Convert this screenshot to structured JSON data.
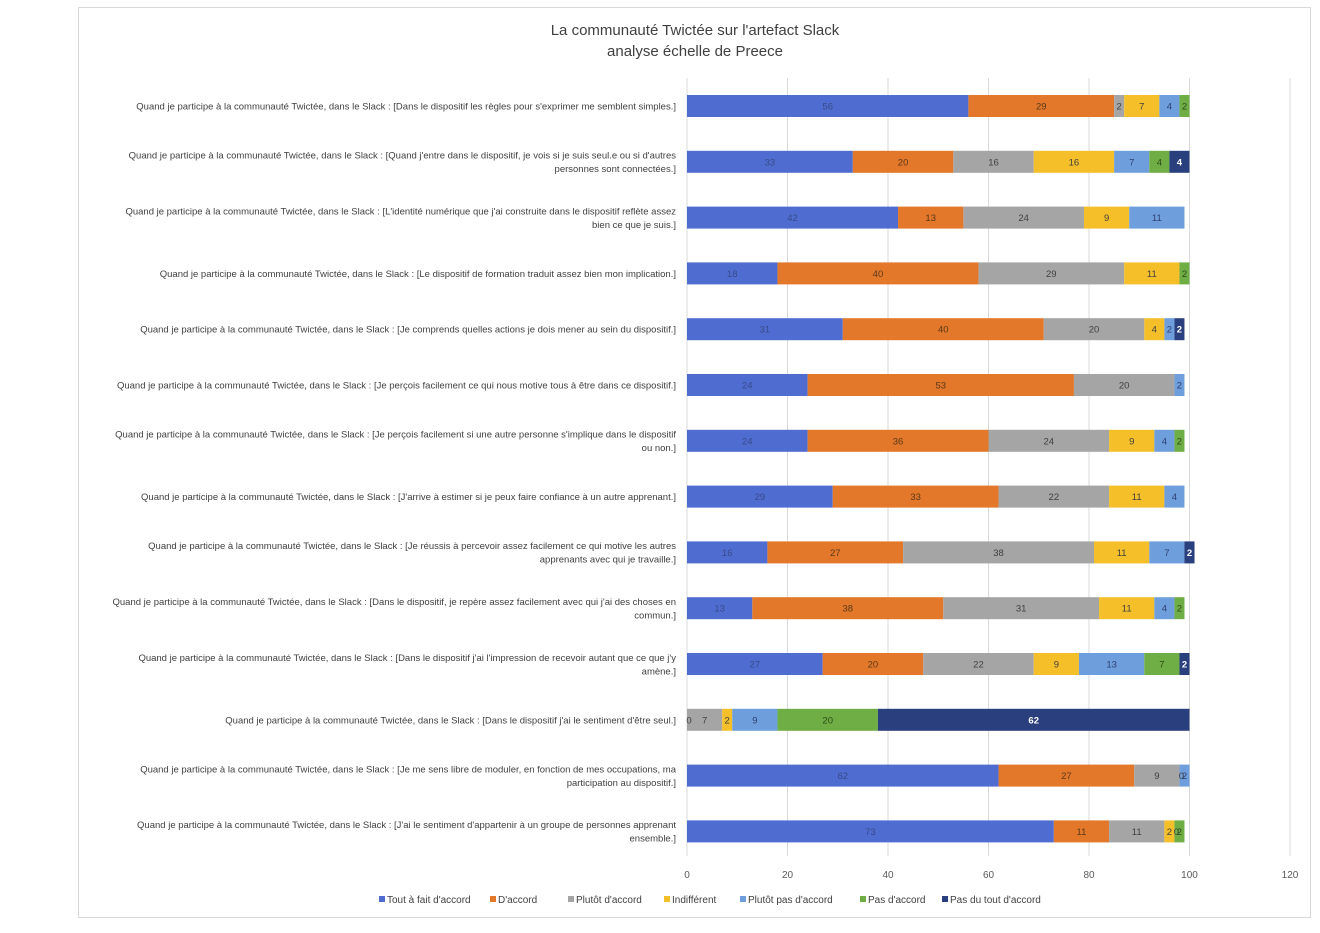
{
  "chart_data": {
    "type": "bar",
    "orientation": "horizontal-stacked",
    "title": "La communauté Twictée sur l'artefact Slack",
    "subtitle": "analyse échelle de Preece",
    "xlim": [
      0,
      120
    ],
    "xticks": [
      "0",
      "20",
      "40",
      "60",
      "80",
      "100",
      "120"
    ],
    "grid": true,
    "legend_position": "bottom",
    "categories": [
      [
        "Quand je participe à la communauté Twictée, dans le Slack : [Dans le dispositif les règles pour s'exprimer me semblent simples.]"
      ],
      [
        "Quand je participe à la communauté Twictée, dans le Slack : [Quand j'entre dans le dispositif, je vois si je suis seul.e ou si d'autres",
        "personnes sont connectées.]"
      ],
      [
        "Quand je participe à la communauté Twictée, dans le Slack : [L'identité numérique que j'ai construite dans le dispositif reflète assez",
        "bien ce que je suis.]"
      ],
      [
        "Quand je participe à la communauté Twictée, dans le Slack : [Le dispositif de formation traduit assez bien mon implication.]"
      ],
      [
        "Quand je participe à la communauté Twictée, dans le Slack : [Je comprends quelles actions je dois mener au sein du dispositif.]"
      ],
      [
        "Quand je participe à la communauté Twictée, dans le Slack : [Je perçois facilement ce qui nous motive tous à être dans ce dispositif.]"
      ],
      [
        "Quand je participe à la communauté Twictée, dans le Slack : [Je perçois facilement si une autre personne s'implique dans le dispositif",
        "ou non.]"
      ],
      [
        "Quand je participe à la communauté Twictée, dans le Slack : [J'arrive à estimer si je peux faire confiance à un autre apprenant.]"
      ],
      [
        "Quand je participe à la communauté Twictée, dans le Slack : [Je réussis à percevoir assez facilement ce qui motive les autres",
        "apprenants avec qui je travaille.]"
      ],
      [
        "Quand je participe à la communauté Twictée, dans le Slack : [Dans le dispositif, je repère assez facilement avec qui j'ai des choses en",
        "commun.]"
      ],
      [
        "Quand je participe à la communauté Twictée, dans le Slack : [Dans le dispositif j'ai l'impression de recevoir autant que ce que j'y",
        "amène.]"
      ],
      [
        "Quand je participe à la communauté Twictée, dans le Slack : [Dans le dispositif j'ai le sentiment d'être seul.]"
      ],
      [
        "Quand je participe à la communauté Twictée, dans le Slack : [Je me sens libre de moduler, en fonction de mes occupations, ma",
        "participation au dispositif.]"
      ],
      [
        "Quand je participe à la communauté Twictée, dans le Slack : [J'ai le sentiment d'appartenir à un groupe de personnes apprenant",
        "ensemble.]"
      ]
    ],
    "series": [
      {
        "name": "Tout à fait d'accord",
        "color": "#4f6dd0",
        "label_color": "#3a4a8a",
        "values": [
          56,
          33,
          42,
          18,
          31,
          24,
          24,
          29,
          16,
          13,
          27,
          0,
          62,
          73
        ]
      },
      {
        "name": "D'accord",
        "color": "#e3772a",
        "label_color": "#5a3a1a",
        "values": [
          29,
          20,
          13,
          40,
          40,
          53,
          36,
          33,
          27,
          38,
          20,
          0,
          27,
          11
        ]
      },
      {
        "name": "Plutôt d'accord",
        "color": "#a5a5a5",
        "label_color": "#404040",
        "values": [
          2,
          16,
          24,
          29,
          20,
          20,
          24,
          22,
          38,
          31,
          22,
          7,
          9,
          11
        ]
      },
      {
        "name": "Indifférent",
        "color": "#f5bf2a",
        "label_color": "#404040",
        "values": [
          7,
          16,
          9,
          11,
          4,
          0,
          9,
          11,
          11,
          11,
          9,
          2,
          0,
          2
        ]
      },
      {
        "name": "Plutôt pas d'accord",
        "color": "#6e9fdc",
        "label_color": "#2f3f6f",
        "values": [
          4,
          7,
          11,
          0,
          2,
          2,
          4,
          4,
          7,
          4,
          13,
          9,
          2,
          0
        ]
      },
      {
        "name": "Pas d'accord",
        "color": "#6fae45",
        "label_color": "#2f4a1a",
        "values": [
          2,
          4,
          0,
          2,
          0,
          0,
          2,
          0,
          0,
          2,
          7,
          20,
          0,
          2
        ]
      },
      {
        "name": "Pas du tout d'accord",
        "color": "#2a3f7d",
        "label_color": "#ffffff",
        "values": [
          0,
          4,
          0,
          0,
          2,
          0,
          0,
          0,
          2,
          0,
          2,
          62,
          0,
          0
        ]
      }
    ],
    "zero_labels": [
      {
        "row": 11,
        "series": 0,
        "text": "0"
      },
      {
        "row": 12,
        "series": 3,
        "text": "0"
      },
      {
        "row": 13,
        "series": 4,
        "text": "0"
      }
    ]
  }
}
